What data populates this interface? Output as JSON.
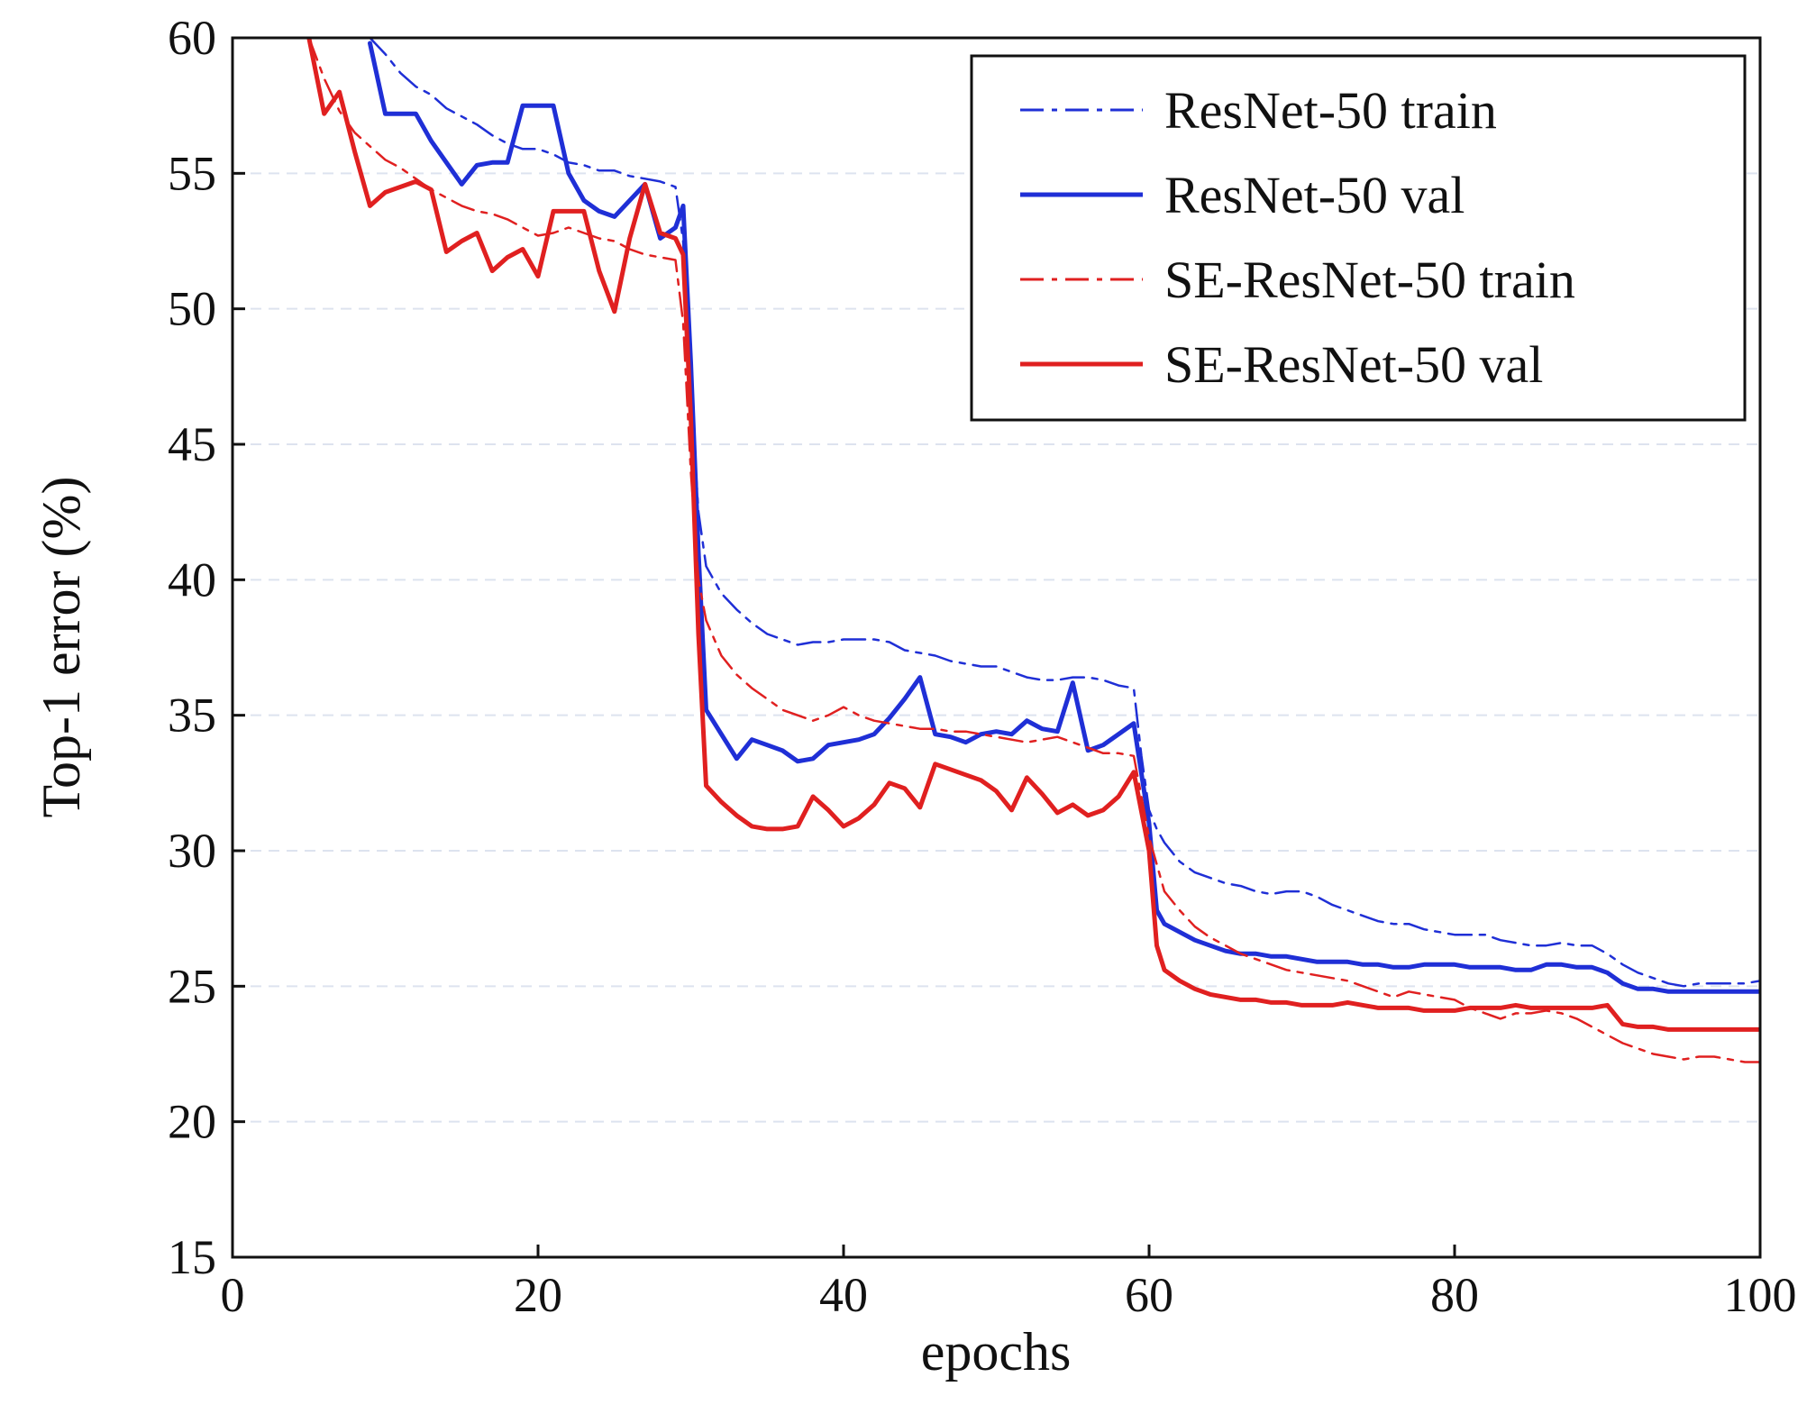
{
  "chart_data": {
    "type": "line",
    "title": "",
    "xlabel": "epochs",
    "ylabel": "Top-1 error (%)",
    "xlim": [
      0,
      100
    ],
    "ylim": [
      15,
      60
    ],
    "xticks": [
      0,
      20,
      40,
      60,
      80,
      100
    ],
    "yticks": [
      15,
      20,
      25,
      30,
      35,
      40,
      45,
      50,
      55,
      60
    ],
    "grid": "horizontal dashed",
    "legend_position": "top-right",
    "series": [
      {
        "name": "ResNet-50 train",
        "style": "dashdot",
        "color": "#1f2fd6",
        "x": [
          9,
          10,
          11,
          12,
          13,
          14,
          15,
          16,
          17,
          18,
          19,
          20,
          21,
          22,
          23,
          24,
          25,
          26,
          27,
          28,
          29,
          29.5,
          30,
          30.5,
          31,
          32,
          33,
          34,
          35,
          36,
          37,
          38,
          39,
          40,
          41,
          42,
          43,
          44,
          45,
          46,
          47,
          48,
          49,
          50,
          51,
          52,
          53,
          54,
          55,
          56,
          57,
          58,
          59,
          59.5,
          60,
          60.5,
          61,
          62,
          63,
          64,
          65,
          66,
          67,
          68,
          69,
          70,
          71,
          72,
          73,
          74,
          75,
          76,
          77,
          78,
          79,
          80,
          81,
          82,
          83,
          84,
          85,
          86,
          87,
          88,
          89,
          90,
          91,
          92,
          93,
          94,
          95,
          96,
          97,
          98,
          99,
          100
        ],
        "values": [
          60.0,
          59.4,
          58.7,
          58.2,
          57.9,
          57.4,
          57.1,
          56.8,
          56.4,
          56.1,
          55.9,
          55.9,
          55.7,
          55.4,
          55.3,
          55.1,
          55.1,
          54.9,
          54.8,
          54.7,
          54.5,
          52.5,
          47.0,
          42.5,
          40.5,
          39.5,
          38.9,
          38.4,
          38.0,
          37.8,
          37.6,
          37.7,
          37.7,
          37.8,
          37.8,
          37.8,
          37.7,
          37.4,
          37.3,
          37.2,
          37.0,
          36.9,
          36.8,
          36.8,
          36.6,
          36.4,
          36.3,
          36.3,
          36.4,
          36.4,
          36.3,
          36.1,
          36.0,
          33.5,
          31.5,
          30.8,
          30.3,
          29.6,
          29.2,
          29.0,
          28.8,
          28.7,
          28.5,
          28.4,
          28.5,
          28.5,
          28.3,
          28.0,
          27.8,
          27.6,
          27.4,
          27.3,
          27.3,
          27.1,
          27.0,
          26.9,
          26.9,
          26.9,
          26.7,
          26.6,
          26.5,
          26.5,
          26.6,
          26.5,
          26.5,
          26.2,
          25.8,
          25.5,
          25.3,
          25.1,
          25.0,
          25.1,
          25.1,
          25.1,
          25.1,
          25.2
        ]
      },
      {
        "name": "ResNet-50 val",
        "style": "solid",
        "color": "#1f2fd6",
        "x": [
          9,
          10,
          11,
          12,
          13,
          14,
          15,
          16,
          17,
          18,
          19,
          20,
          21,
          22,
          23,
          24,
          25,
          26,
          27,
          28,
          29,
          29.5,
          30,
          30.5,
          31,
          32,
          33,
          34,
          35,
          36,
          37,
          38,
          39,
          40,
          41,
          42,
          43,
          44,
          45,
          46,
          47,
          48,
          49,
          50,
          51,
          52,
          53,
          54,
          55,
          56,
          57,
          58,
          59,
          60,
          60.5,
          61,
          62,
          63,
          64,
          65,
          66,
          67,
          68,
          69,
          70,
          71,
          72,
          73,
          74,
          75,
          76,
          77,
          78,
          79,
          80,
          81,
          82,
          83,
          84,
          85,
          86,
          87,
          88,
          89,
          90,
          91,
          92,
          93,
          94,
          95,
          96,
          97,
          98,
          99,
          100
        ],
        "values": [
          59.8,
          57.2,
          57.2,
          57.2,
          56.2,
          55.4,
          54.6,
          55.3,
          55.4,
          55.4,
          57.5,
          57.5,
          57.5,
          55.0,
          54.0,
          53.6,
          53.4,
          54.0,
          54.6,
          52.6,
          53.0,
          53.8,
          48.0,
          41.0,
          35.2,
          34.3,
          33.4,
          34.1,
          33.9,
          33.7,
          33.3,
          33.4,
          33.9,
          34.0,
          34.1,
          34.3,
          34.9,
          35.6,
          36.4,
          34.3,
          34.2,
          34.0,
          34.3,
          34.4,
          34.3,
          34.8,
          34.5,
          34.4,
          36.2,
          33.7,
          33.9,
          34.3,
          34.7,
          31.0,
          27.8,
          27.3,
          27.0,
          26.7,
          26.5,
          26.3,
          26.2,
          26.2,
          26.1,
          26.1,
          26.0,
          25.9,
          25.9,
          25.9,
          25.8,
          25.8,
          25.7,
          25.7,
          25.8,
          25.8,
          25.8,
          25.7,
          25.7,
          25.7,
          25.6,
          25.6,
          25.8,
          25.8,
          25.7,
          25.7,
          25.5,
          25.1,
          24.9,
          24.9,
          24.8,
          24.8,
          24.8,
          24.8,
          24.8,
          24.8,
          24.8
        ]
      },
      {
        "name": "SE-ResNet-50 train",
        "style": "dashdot",
        "color": "#e02020",
        "x": [
          5,
          6,
          7,
          8,
          9,
          10,
          11,
          12,
          13,
          14,
          15,
          16,
          17,
          18,
          19,
          20,
          21,
          22,
          23,
          24,
          25,
          26,
          27,
          28,
          29,
          29.5,
          30,
          30.5,
          31,
          32,
          33,
          34,
          35,
          36,
          37,
          38,
          39,
          40,
          41,
          42,
          43,
          44,
          45,
          46,
          47,
          48,
          49,
          50,
          51,
          52,
          53,
          54,
          55,
          56,
          57,
          58,
          59,
          59.5,
          60,
          60.5,
          61,
          62,
          63,
          64,
          65,
          66,
          67,
          68,
          69,
          70,
          71,
          72,
          73,
          74,
          75,
          76,
          77,
          78,
          79,
          80,
          81,
          82,
          83,
          84,
          85,
          86,
          87,
          88,
          89,
          90,
          91,
          92,
          93,
          94,
          95,
          96,
          97,
          98,
          99,
          100
        ],
        "values": [
          60.0,
          58.5,
          57.3,
          56.5,
          56.0,
          55.5,
          55.2,
          54.8,
          54.4,
          54.1,
          53.8,
          53.6,
          53.5,
          53.3,
          53.0,
          52.7,
          52.8,
          53.0,
          52.8,
          52.6,
          52.5,
          52.2,
          52.0,
          51.9,
          51.8,
          49.5,
          44.0,
          40.0,
          38.5,
          37.2,
          36.5,
          36.0,
          35.6,
          35.2,
          35.0,
          34.8,
          35.0,
          35.3,
          35.0,
          34.8,
          34.7,
          34.6,
          34.5,
          34.5,
          34.4,
          34.4,
          34.3,
          34.2,
          34.1,
          34.0,
          34.1,
          34.2,
          34.0,
          33.8,
          33.6,
          33.6,
          33.5,
          32.0,
          30.5,
          29.5,
          28.5,
          27.8,
          27.2,
          26.8,
          26.5,
          26.2,
          26.0,
          25.8,
          25.6,
          25.5,
          25.4,
          25.3,
          25.2,
          25.0,
          24.8,
          24.6,
          24.8,
          24.7,
          24.6,
          24.5,
          24.2,
          24.0,
          23.8,
          24.0,
          24.0,
          24.1,
          24.0,
          23.8,
          23.5,
          23.2,
          22.9,
          22.7,
          22.5,
          22.4,
          22.3,
          22.4,
          22.4,
          22.3,
          22.2,
          22.2
        ]
      },
      {
        "name": "SE-ResNet-50 val",
        "style": "solid",
        "color": "#e02020",
        "x": [
          5,
          6,
          7,
          8,
          9,
          10,
          11,
          12,
          13,
          14,
          15,
          16,
          17,
          18,
          19,
          20,
          21,
          22,
          23,
          24,
          25,
          26,
          27,
          28,
          29,
          29.5,
          30,
          30.5,
          31,
          32,
          33,
          34,
          35,
          36,
          37,
          38,
          39,
          40,
          41,
          42,
          43,
          44,
          45,
          46,
          47,
          48,
          49,
          50,
          51,
          52,
          53,
          54,
          55,
          56,
          57,
          58,
          59,
          60,
          60.5,
          61,
          62,
          63,
          64,
          65,
          66,
          67,
          68,
          69,
          70,
          71,
          72,
          73,
          74,
          75,
          76,
          77,
          78,
          79,
          80,
          81,
          82,
          83,
          84,
          85,
          86,
          87,
          88,
          89,
          90,
          91,
          92,
          93,
          94,
          95,
          96,
          97,
          98,
          99,
          100
        ],
        "values": [
          60.0,
          57.2,
          58.0,
          55.8,
          53.8,
          54.3,
          54.5,
          54.7,
          54.4,
          52.1,
          52.5,
          52.8,
          51.4,
          51.9,
          52.2,
          51.2,
          53.6,
          53.6,
          53.6,
          51.4,
          49.9,
          52.6,
          54.6,
          52.8,
          52.6,
          52.0,
          46.0,
          38.0,
          32.4,
          31.8,
          31.3,
          30.9,
          30.8,
          30.8,
          30.9,
          32.0,
          31.5,
          30.9,
          31.2,
          31.7,
          32.5,
          32.3,
          31.6,
          33.2,
          33.0,
          32.8,
          32.6,
          32.2,
          31.5,
          32.7,
          32.1,
          31.4,
          31.7,
          31.3,
          31.5,
          32.0,
          32.9,
          30.0,
          26.5,
          25.6,
          25.2,
          24.9,
          24.7,
          24.6,
          24.5,
          24.5,
          24.4,
          24.4,
          24.3,
          24.3,
          24.3,
          24.4,
          24.3,
          24.2,
          24.2,
          24.2,
          24.1,
          24.1,
          24.1,
          24.2,
          24.2,
          24.2,
          24.3,
          24.2,
          24.2,
          24.2,
          24.2,
          24.2,
          24.3,
          23.6,
          23.5,
          23.5,
          23.4,
          23.4,
          23.4,
          23.4,
          23.4,
          23.4,
          23.4
        ]
      }
    ]
  }
}
